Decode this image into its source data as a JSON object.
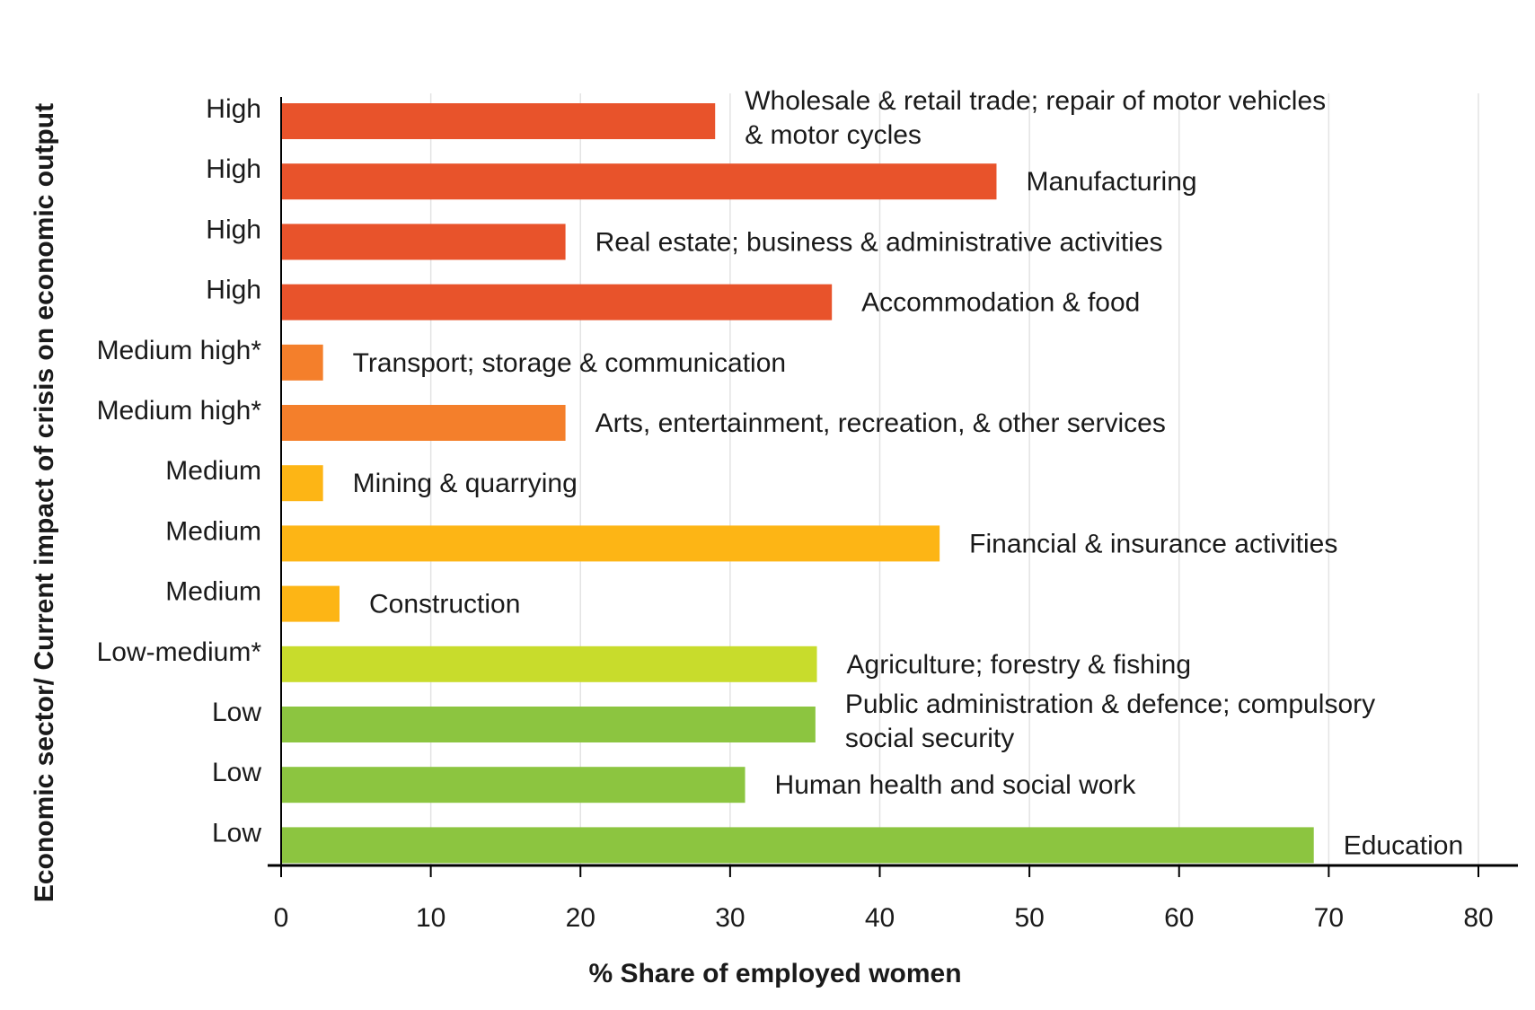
{
  "chart_data": {
    "type": "bar",
    "orientation": "horizontal",
    "xlabel": "% Share of employed women",
    "ylabel": "Economic sector/ Current impact of crisis on economic output",
    "xlim": [
      0,
      80
    ],
    "xticks": [
      0,
      10,
      20,
      30,
      40,
      50,
      60,
      70,
      80
    ],
    "grid": "vertical",
    "colors": {
      "High": "#e8532b",
      "Medium high*": "#f47f2b",
      "Medium": "#fdb515",
      "Low-medium*": "#c8dc2c",
      "Low": "#8cc540"
    },
    "bars": [
      {
        "impact": "High",
        "sector": [
          "Wholesale & retail trade; repair of motor vehicles",
          "& motor cycles"
        ],
        "value": 29
      },
      {
        "impact": "High",
        "sector": [
          "Manufacturing"
        ],
        "value": 47.8
      },
      {
        "impact": "High",
        "sector": [
          "Real estate; business & administrative activities"
        ],
        "value": 19
      },
      {
        "impact": "High",
        "sector": [
          "Accommodation & food"
        ],
        "value": 36.8
      },
      {
        "impact": "Medium high*",
        "sector": [
          "Transport; storage & communication"
        ],
        "value": 2.8
      },
      {
        "impact": "Medium high*",
        "sector": [
          "Arts, entertainment, recreation, & other services"
        ],
        "value": 19
      },
      {
        "impact": "Medium",
        "sector": [
          "Mining & quarrying"
        ],
        "value": 2.8
      },
      {
        "impact": "Medium",
        "sector": [
          "Financial & insurance activities"
        ],
        "value": 44
      },
      {
        "impact": "Medium",
        "sector": [
          "Construction"
        ],
        "value": 3.9
      },
      {
        "impact": "Low-medium*",
        "sector": [
          "Agriculture; forestry & fishing"
        ],
        "value": 35.8
      },
      {
        "impact": "Low",
        "sector": [
          "Public administration & defence; compulsory",
          "social security"
        ],
        "value": 35.7
      },
      {
        "impact": "Low",
        "sector": [
          "Human health and social work"
        ],
        "value": 31
      },
      {
        "impact": "Low",
        "sector": [
          "Education"
        ],
        "value": 69
      }
    ]
  }
}
